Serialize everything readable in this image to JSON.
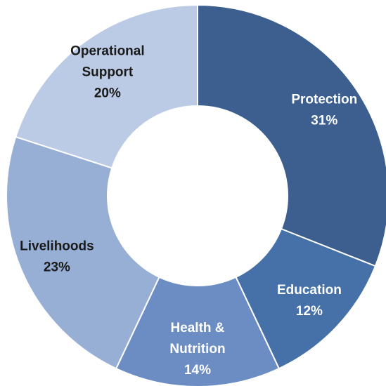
{
  "chart_data": {
    "type": "pie",
    "variant": "donut",
    "title": "",
    "categories": [
      "Protection",
      "Education",
      "Health & Nutrition",
      "Livelihoods",
      "Operational Support"
    ],
    "values": [
      31,
      12,
      14,
      23,
      20
    ],
    "value_labels": [
      "31%",
      "12%",
      "14%",
      "23%",
      "20%"
    ],
    "label_lines": [
      [
        "Protection",
        "31%"
      ],
      [
        "Education",
        "12%"
      ],
      [
        "Health &",
        "Nutrition",
        "14%"
      ],
      [
        "Livelihoods",
        "23%"
      ],
      [
        "Operational",
        "Support",
        "20%"
      ]
    ],
    "colors": [
      "#3c5f8f",
      "#4571a8",
      "#6b8dc3",
      "#97aed5",
      "#bccbe5"
    ],
    "label_colors": [
      "#ffffff",
      "#ffffff",
      "#ffffff",
      "#1a1a1a",
      "#1a1a1a"
    ],
    "start_angle_deg": 0,
    "direction": "clockwise",
    "legend": "none"
  }
}
